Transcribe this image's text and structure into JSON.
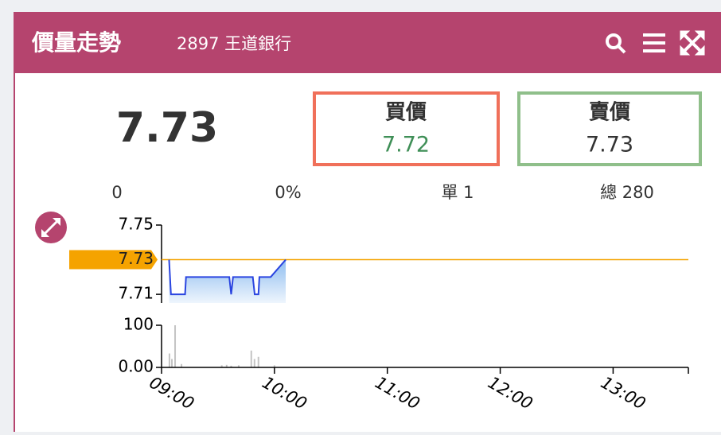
{
  "header": {
    "title": "價量走勢",
    "subtitle": "2897 王道銀行"
  },
  "quote": {
    "price": "7.73",
    "bid": {
      "label": "買價",
      "value": "7.72"
    },
    "ask": {
      "label": "賣價",
      "value": "7.73"
    }
  },
  "stats": [
    "0",
    "0%",
    "單 1",
    "總 280"
  ],
  "chart_data": [
    {
      "type": "line",
      "color": "#2a45e0",
      "x": [
        4,
        5,
        12.5,
        13,
        36,
        37,
        38,
        48.5,
        49.5,
        51.5,
        52,
        58,
        66
      ],
      "values": [
        7.73,
        7.71,
        7.71,
        7.72,
        7.72,
        7.71,
        7.72,
        7.72,
        7.71,
        7.71,
        7.72,
        7.72,
        7.73
      ],
      "xlim": [
        0,
        280
      ],
      "ylim": [
        7.705,
        7.75
      ],
      "yticks": [
        7.71,
        7.75
      ],
      "reference_line": 7.73,
      "reference_color": "#f5a300"
    },
    {
      "type": "bar",
      "color": "#c4c4c4",
      "x": [
        4.2,
        5.5,
        7.2,
        10.6,
        32,
        34.6,
        37,
        41,
        47.7,
        49.4,
        51.5,
        60
      ],
      "values": [
        33,
        20,
        100,
        8,
        5,
        6,
        4,
        5,
        40,
        20,
        25,
        5
      ],
      "xlim": [
        0,
        280
      ],
      "xticks": [
        {
          "value": 0,
          "label": "09:00"
        },
        {
          "value": 60,
          "label": "10:00"
        },
        {
          "value": 120,
          "label": "11:00"
        },
        {
          "value": 180,
          "label": "12:00"
        },
        {
          "value": 240,
          "label": "13:00"
        },
        280
      ],
      "ylim": [
        0,
        100
      ],
      "yticks": [
        {
          "value": 0,
          "label": "0.00"
        },
        100
      ]
    }
  ]
}
